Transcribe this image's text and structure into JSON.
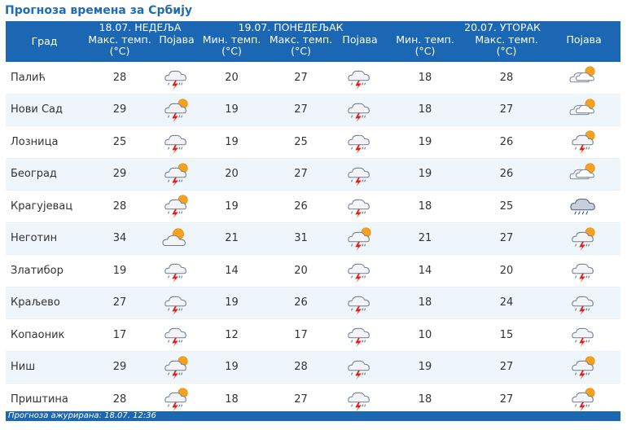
{
  "title": "Прогноза времена за Србију",
  "header": {
    "city_col": "Град",
    "days": [
      {
        "date": "18.07. НЕДЕЉА",
        "cols": [
          "Макс. темп. (°C)",
          "Појава"
        ]
      },
      {
        "date": "19.07. ПОНЕДЕЉАК",
        "cols": [
          "Мин. темп. (°C)",
          "Макс. темп. (°C)",
          "Појава"
        ]
      },
      {
        "date": "20.07. УТОРАК",
        "cols": [
          "Мин. темп. (°C)",
          "Макс. темп. (°C)",
          "Појава"
        ]
      }
    ]
  },
  "rows": [
    {
      "city": "Палић",
      "d1_max": "28",
      "d1_icon": "storm-cloud-icon",
      "d2_min": "20",
      "d2_max": "27",
      "d2_icon": "storm-cloud-icon",
      "d3_min": "18",
      "d3_max": "28",
      "d3_icon": "partly-cloudy-icon"
    },
    {
      "city": "Нови Сад",
      "d1_max": "29",
      "d1_icon": "sun-storm-cloud-icon",
      "d2_min": "19",
      "d2_max": "27",
      "d2_icon": "storm-cloud-icon",
      "d3_min": "18",
      "d3_max": "27",
      "d3_icon": "partly-cloudy-icon"
    },
    {
      "city": "Лозница",
      "d1_max": "25",
      "d1_icon": "storm-cloud-icon",
      "d2_min": "19",
      "d2_max": "25",
      "d2_icon": "storm-cloud-icon",
      "d3_min": "19",
      "d3_max": "26",
      "d3_icon": "sun-storm-cloud-icon"
    },
    {
      "city": "Београд",
      "d1_max": "29",
      "d1_icon": "sun-storm-cloud-icon",
      "d2_min": "20",
      "d2_max": "27",
      "d2_icon": "storm-cloud-icon",
      "d3_min": "19",
      "d3_max": "26",
      "d3_icon": "partly-cloudy-icon"
    },
    {
      "city": "Крагујевац",
      "d1_max": "28",
      "d1_icon": "sun-storm-cloud-icon",
      "d2_min": "19",
      "d2_max": "26",
      "d2_icon": "storm-cloud-icon",
      "d3_min": "18",
      "d3_max": "25",
      "d3_icon": "rain-cloud-icon"
    },
    {
      "city": "Неготин",
      "d1_max": "34",
      "d1_icon": "sun-cloud-icon",
      "d2_min": "21",
      "d2_max": "31",
      "d2_icon": "sun-storm-cloud-icon",
      "d3_min": "21",
      "d3_max": "27",
      "d3_icon": "sun-storm-cloud-icon"
    },
    {
      "city": "Златибор",
      "d1_max": "19",
      "d1_icon": "storm-cloud-icon",
      "d2_min": "14",
      "d2_max": "20",
      "d2_icon": "storm-cloud-icon",
      "d3_min": "14",
      "d3_max": "20",
      "d3_icon": "storm-cloud-icon"
    },
    {
      "city": "Краљево",
      "d1_max": "27",
      "d1_icon": "storm-cloud-icon",
      "d2_min": "19",
      "d2_max": "26",
      "d2_icon": "storm-cloud-icon",
      "d3_min": "18",
      "d3_max": "24",
      "d3_icon": "storm-cloud-icon"
    },
    {
      "city": "Копаоник",
      "d1_max": "17",
      "d1_icon": "storm-cloud-icon",
      "d2_min": "12",
      "d2_max": "17",
      "d2_icon": "storm-cloud-icon",
      "d3_min": "10",
      "d3_max": "15",
      "d3_icon": "storm-cloud-icon"
    },
    {
      "city": "Ниш",
      "d1_max": "29",
      "d1_icon": "sun-storm-cloud-icon",
      "d2_min": "19",
      "d2_max": "28",
      "d2_icon": "storm-cloud-icon",
      "d3_min": "19",
      "d3_max": "27",
      "d3_icon": "sun-storm-cloud-icon"
    },
    {
      "city": "Приштина",
      "d1_max": "28",
      "d1_icon": "sun-storm-cloud-icon",
      "d2_min": "18",
      "d2_max": "27",
      "d2_icon": "storm-cloud-icon",
      "d3_min": "18",
      "d3_max": "27",
      "d3_icon": "sun-storm-cloud-icon"
    }
  ],
  "footer": "Прогноза ажурирана:  18.07. 12:36",
  "colors": {
    "header_bg": "#1c67b3",
    "title": "#1e6bb8",
    "row_alt": "#eef6fc"
  }
}
